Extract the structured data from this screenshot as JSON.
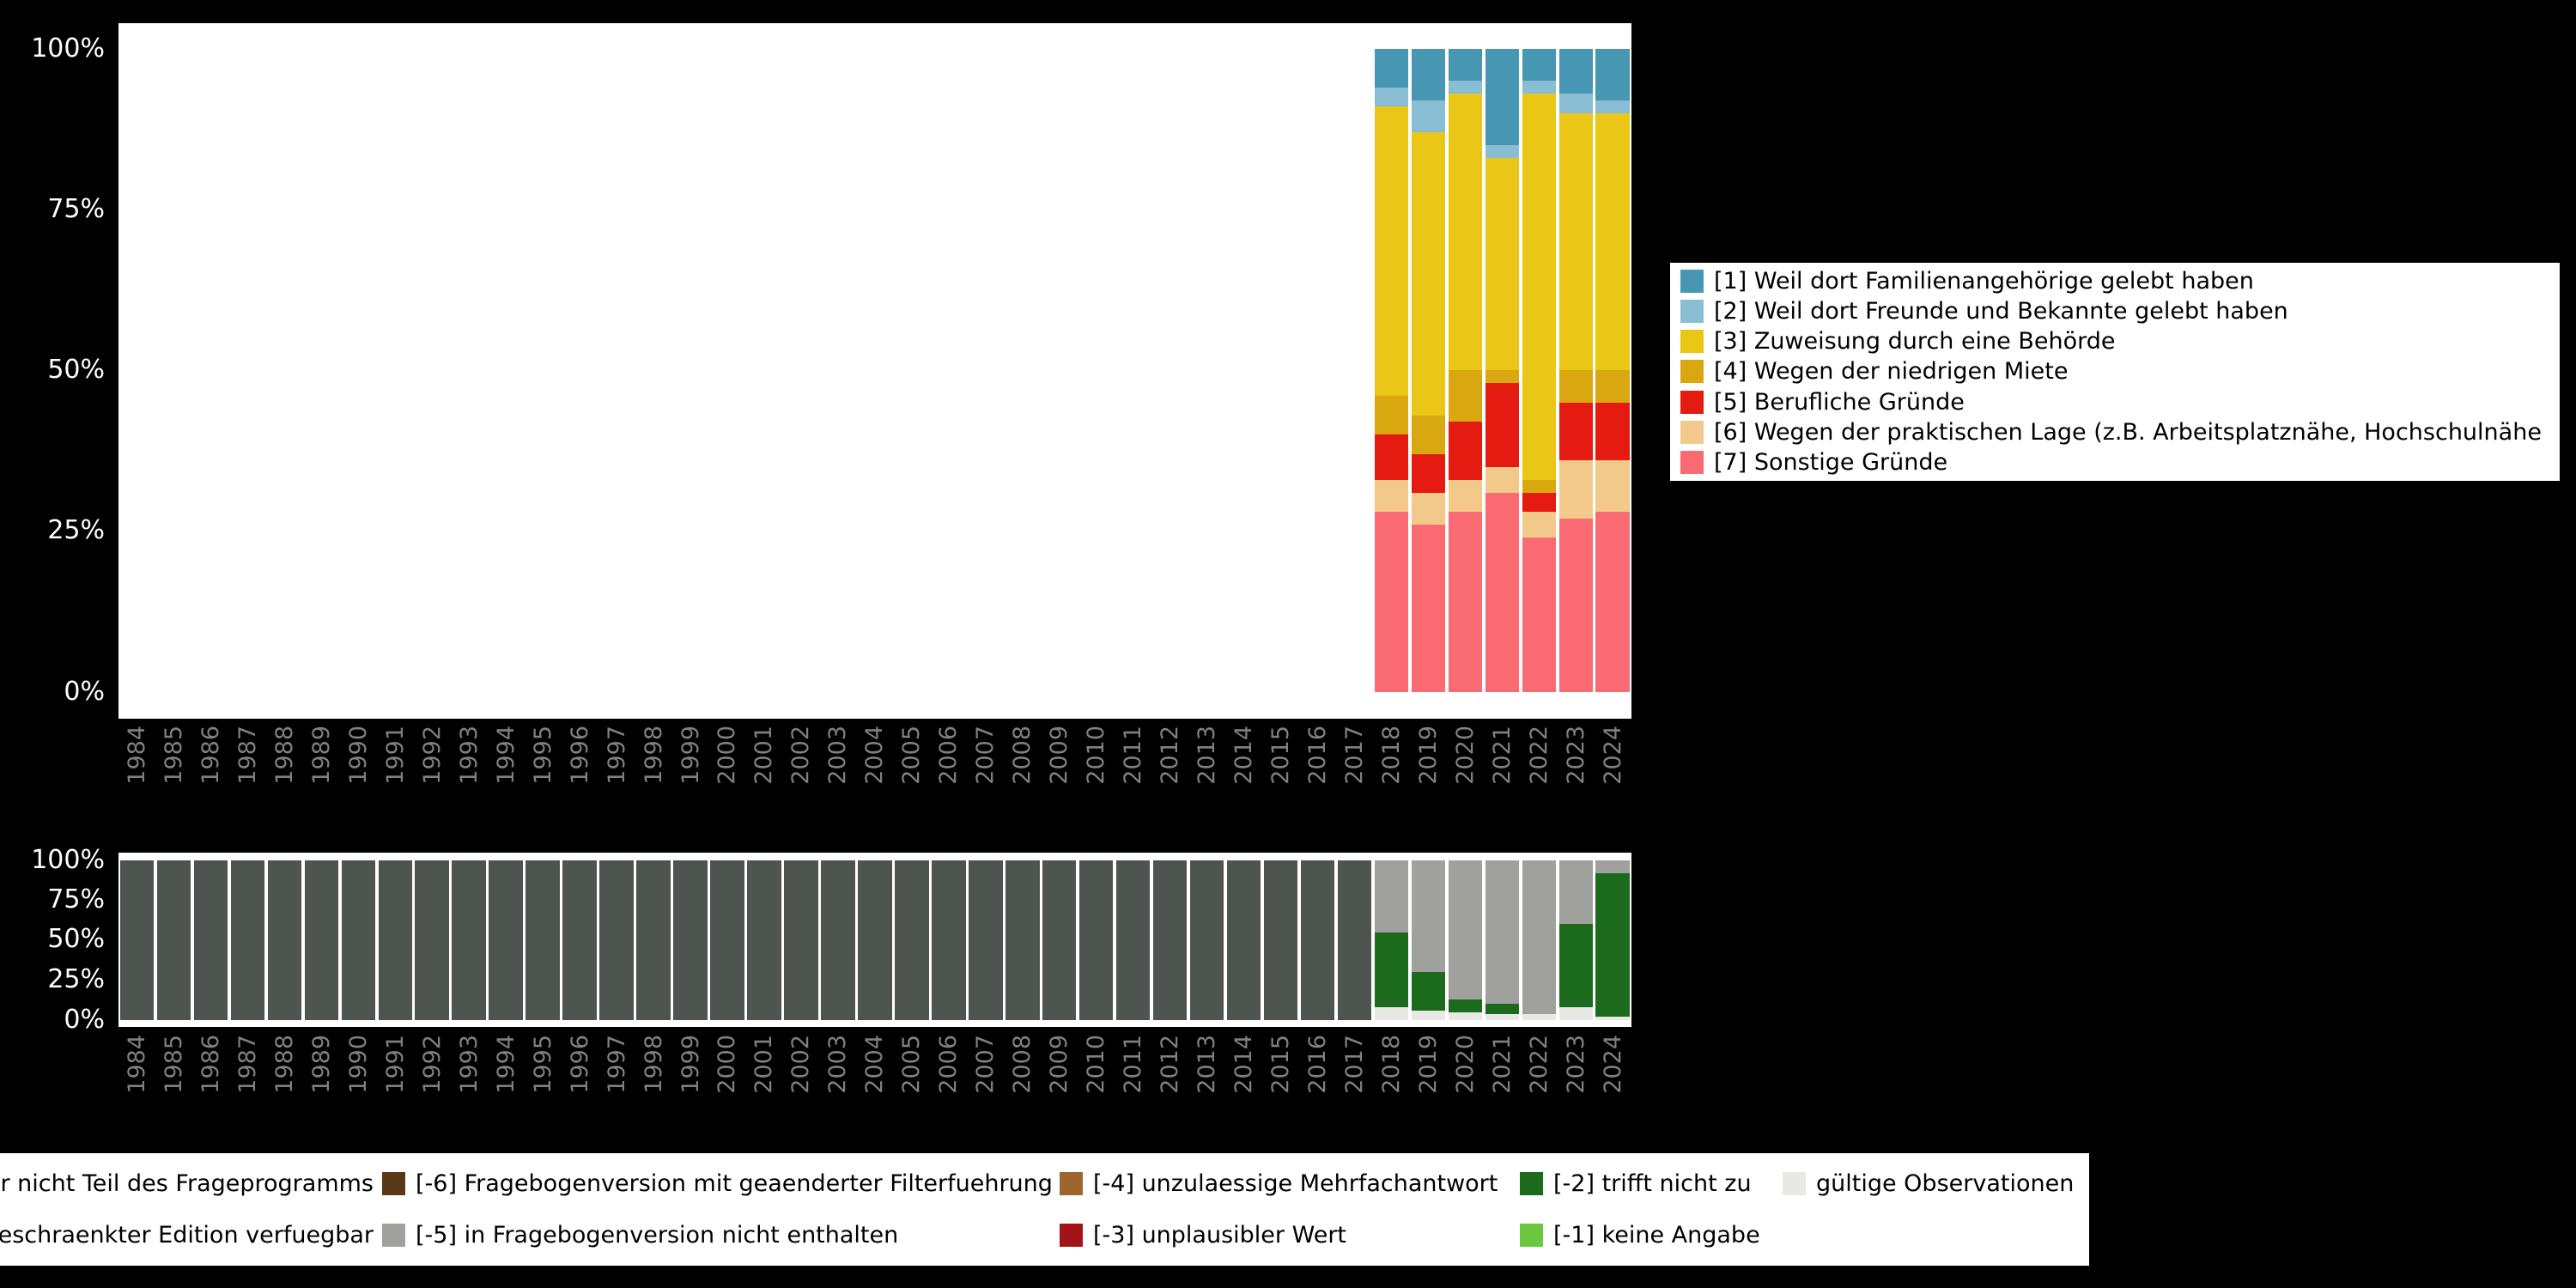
{
  "colors": {
    "background": "#000000",
    "plot_background": "#ffffff",
    "y_axis_text": "#ffffff",
    "x_axis_text": "#808080",
    "legend_background": "#ffffff",
    "legend_text": "#000000"
  },
  "axes": {
    "y_ticks": [
      "100%",
      "75%",
      "50%",
      "25%",
      "0%"
    ],
    "years": [
      "1984",
      "1985",
      "1986",
      "1987",
      "1988",
      "1989",
      "1990",
      "1991",
      "1992",
      "1993",
      "1994",
      "1995",
      "1996",
      "1997",
      "1998",
      "1999",
      "2000",
      "2001",
      "2002",
      "2003",
      "2004",
      "2005",
      "2006",
      "2007",
      "2008",
      "2009",
      "2010",
      "2011",
      "2012",
      "2013",
      "2014",
      "2015",
      "2016",
      "2017",
      "2018",
      "2019",
      "2020",
      "2021",
      "2022",
      "2023",
      "2024"
    ]
  },
  "chart_data": [
    {
      "id": "answer-distribution",
      "type": "bar",
      "stacked": true,
      "title": "",
      "xlabel": "",
      "ylabel": "",
      "ylim": [
        0,
        100
      ],
      "y_ticks": [
        "100%",
        "75%",
        "50%",
        "25%",
        "0%"
      ],
      "legend_position": "right",
      "grid": false,
      "x": [
        "1984",
        "1985",
        "1986",
        "1987",
        "1988",
        "1989",
        "1990",
        "1991",
        "1992",
        "1993",
        "1994",
        "1995",
        "1996",
        "1997",
        "1998",
        "1999",
        "2000",
        "2001",
        "2002",
        "2003",
        "2004",
        "2005",
        "2006",
        "2007",
        "2008",
        "2009",
        "2010",
        "2011",
        "2012",
        "2013",
        "2014",
        "2015",
        "2016",
        "2017",
        "2018",
        "2019",
        "2020",
        "2021",
        "2022",
        "2023",
        "2024"
      ],
      "series": [
        {
          "name": "[1] Weil dort Familienangehörige gelebt haben",
          "color": "#4796b3",
          "values": {
            "2018": 6,
            "2019": 8,
            "2020": 5,
            "2021": 15,
            "2022": 5,
            "2023": 7,
            "2024": 8
          }
        },
        {
          "name": "[2] Weil dort Freunde und Bekannte gelebt haben",
          "color": "#89bdd3",
          "values": {
            "2018": 3,
            "2019": 5,
            "2020": 2,
            "2021": 2,
            "2022": 2,
            "2023": 3,
            "2024": 2
          }
        },
        {
          "name": "[3] Zuweisung durch eine Behörde",
          "color": "#eac616",
          "values": {
            "2018": 45,
            "2019": 44,
            "2020": 43,
            "2021": 33,
            "2022": 60,
            "2023": 40,
            "2024": 40
          }
        },
        {
          "name": "[4] Wegen der niedrigen Miete",
          "color": "#d9a810",
          "values": {
            "2018": 6,
            "2019": 6,
            "2020": 8,
            "2021": 2,
            "2022": 2,
            "2023": 5,
            "2024": 5
          }
        },
        {
          "name": "[5] Berufliche Gründe",
          "color": "#e51a10",
          "values": {
            "2018": 7,
            "2019": 6,
            "2020": 9,
            "2021": 13,
            "2022": 3,
            "2023": 9,
            "2024": 9
          }
        },
        {
          "name": "[6] Wegen der praktischen Lage (z.B. Arbeitsplatznähe, Hochschulnähe",
          "color": "#f3c98b",
          "values": {
            "2018": 5,
            "2019": 5,
            "2020": 5,
            "2021": 4,
            "2022": 4,
            "2023": 9,
            "2024": 8
          }
        },
        {
          "name": "[7] Sonstige Gründe",
          "color": "#fa6a72",
          "values": {
            "2018": 28,
            "2019": 26,
            "2020": 28,
            "2021": 31,
            "2022": 24,
            "2023": 27,
            "2024": 28
          }
        }
      ]
    },
    {
      "id": "missing-distribution",
      "type": "bar",
      "stacked": true,
      "title": "",
      "xlabel": "",
      "ylabel": "",
      "ylim": [
        0,
        100
      ],
      "y_ticks": [
        "100%",
        "75%",
        "50%",
        "25%",
        "0%"
      ],
      "legend_position": "bottom",
      "grid": false,
      "x": [
        "1984",
        "1985",
        "1986",
        "1987",
        "1988",
        "1989",
        "1990",
        "1991",
        "1992",
        "1993",
        "1994",
        "1995",
        "1996",
        "1997",
        "1998",
        "1999",
        "2000",
        "2001",
        "2002",
        "2003",
        "2004",
        "2005",
        "2006",
        "2007",
        "2008",
        "2009",
        "2010",
        "2011",
        "2012",
        "2013",
        "2014",
        "2015",
        "2016",
        "2017",
        "2018",
        "2019",
        "2020",
        "2021",
        "2022",
        "2023",
        "2024"
      ],
      "series": [
        {
          "name": "gültige Observationen",
          "color": "#e8e8e5",
          "values": {
            "2018": 8,
            "2019": 6,
            "2020": 5,
            "2021": 4,
            "2022": 4,
            "2023": 8,
            "2024": 2
          }
        },
        {
          "name": "[-2] trifft nicht zu",
          "color": "#1c6b1c",
          "values": {
            "2018": 47,
            "2019": 24,
            "2020": 8,
            "2021": 6,
            "2022": 0,
            "2023": 52,
            "2024": 90
          }
        },
        {
          "name": "[-5] in Fragebogenversion nicht enthalten",
          "color": "#a0a19e",
          "values": {
            "2018": 45,
            "2019": 70,
            "2020": 87,
            "2021": 90,
            "2022": 96,
            "2023": 40,
            "2024": 8
          }
        },
        {
          "name": "nicht Teil des Frageprogramms",
          "color": "#4e5450",
          "values": {
            "1984": 100,
            "1985": 100,
            "1986": 100,
            "1987": 100,
            "1988": 100,
            "1989": 100,
            "1990": 100,
            "1991": 100,
            "1992": 100,
            "1993": 100,
            "1994": 100,
            "1995": 100,
            "1996": 100,
            "1997": 100,
            "1998": 100,
            "1999": 100,
            "2000": 100,
            "2001": 100,
            "2002": 100,
            "2003": 100,
            "2004": 100,
            "2005": 100,
            "2006": 100,
            "2007": 100,
            "2008": 100,
            "2009": 100,
            "2010": 100,
            "2011": 100,
            "2012": 100,
            "2013": 100,
            "2014": 100,
            "2015": 100,
            "2016": 100,
            "2017": 100
          }
        }
      ]
    }
  ],
  "bottom_legend": {
    "rows": [
      [
        {
          "label": "r nicht Teil des Frageprogramms",
          "color": null
        },
        {
          "label": "[-6] Fragebogenversion mit geaenderter Filterfuehrung",
          "color": "#5a3a16"
        },
        {
          "label": "[-4] unzulaessige Mehrfachantwort",
          "color": "#9c672f"
        },
        {
          "label": "[-2] trifft nicht zu",
          "color": "#1c6b1c"
        },
        {
          "label": "gültige Observationen",
          "color": "#e8e8e5"
        }
      ],
      [
        {
          "label": "geschraenkter Edition verfuegbar",
          "color": null
        },
        {
          "label": "[-5] in Fragebogenversion nicht enthalten",
          "color": "#a0a19e"
        },
        {
          "label": "[-3] unplausibler Wert",
          "color": "#a3141a"
        },
        {
          "label": "[-1] keine Angabe",
          "color": "#6bc83f"
        }
      ]
    ]
  }
}
